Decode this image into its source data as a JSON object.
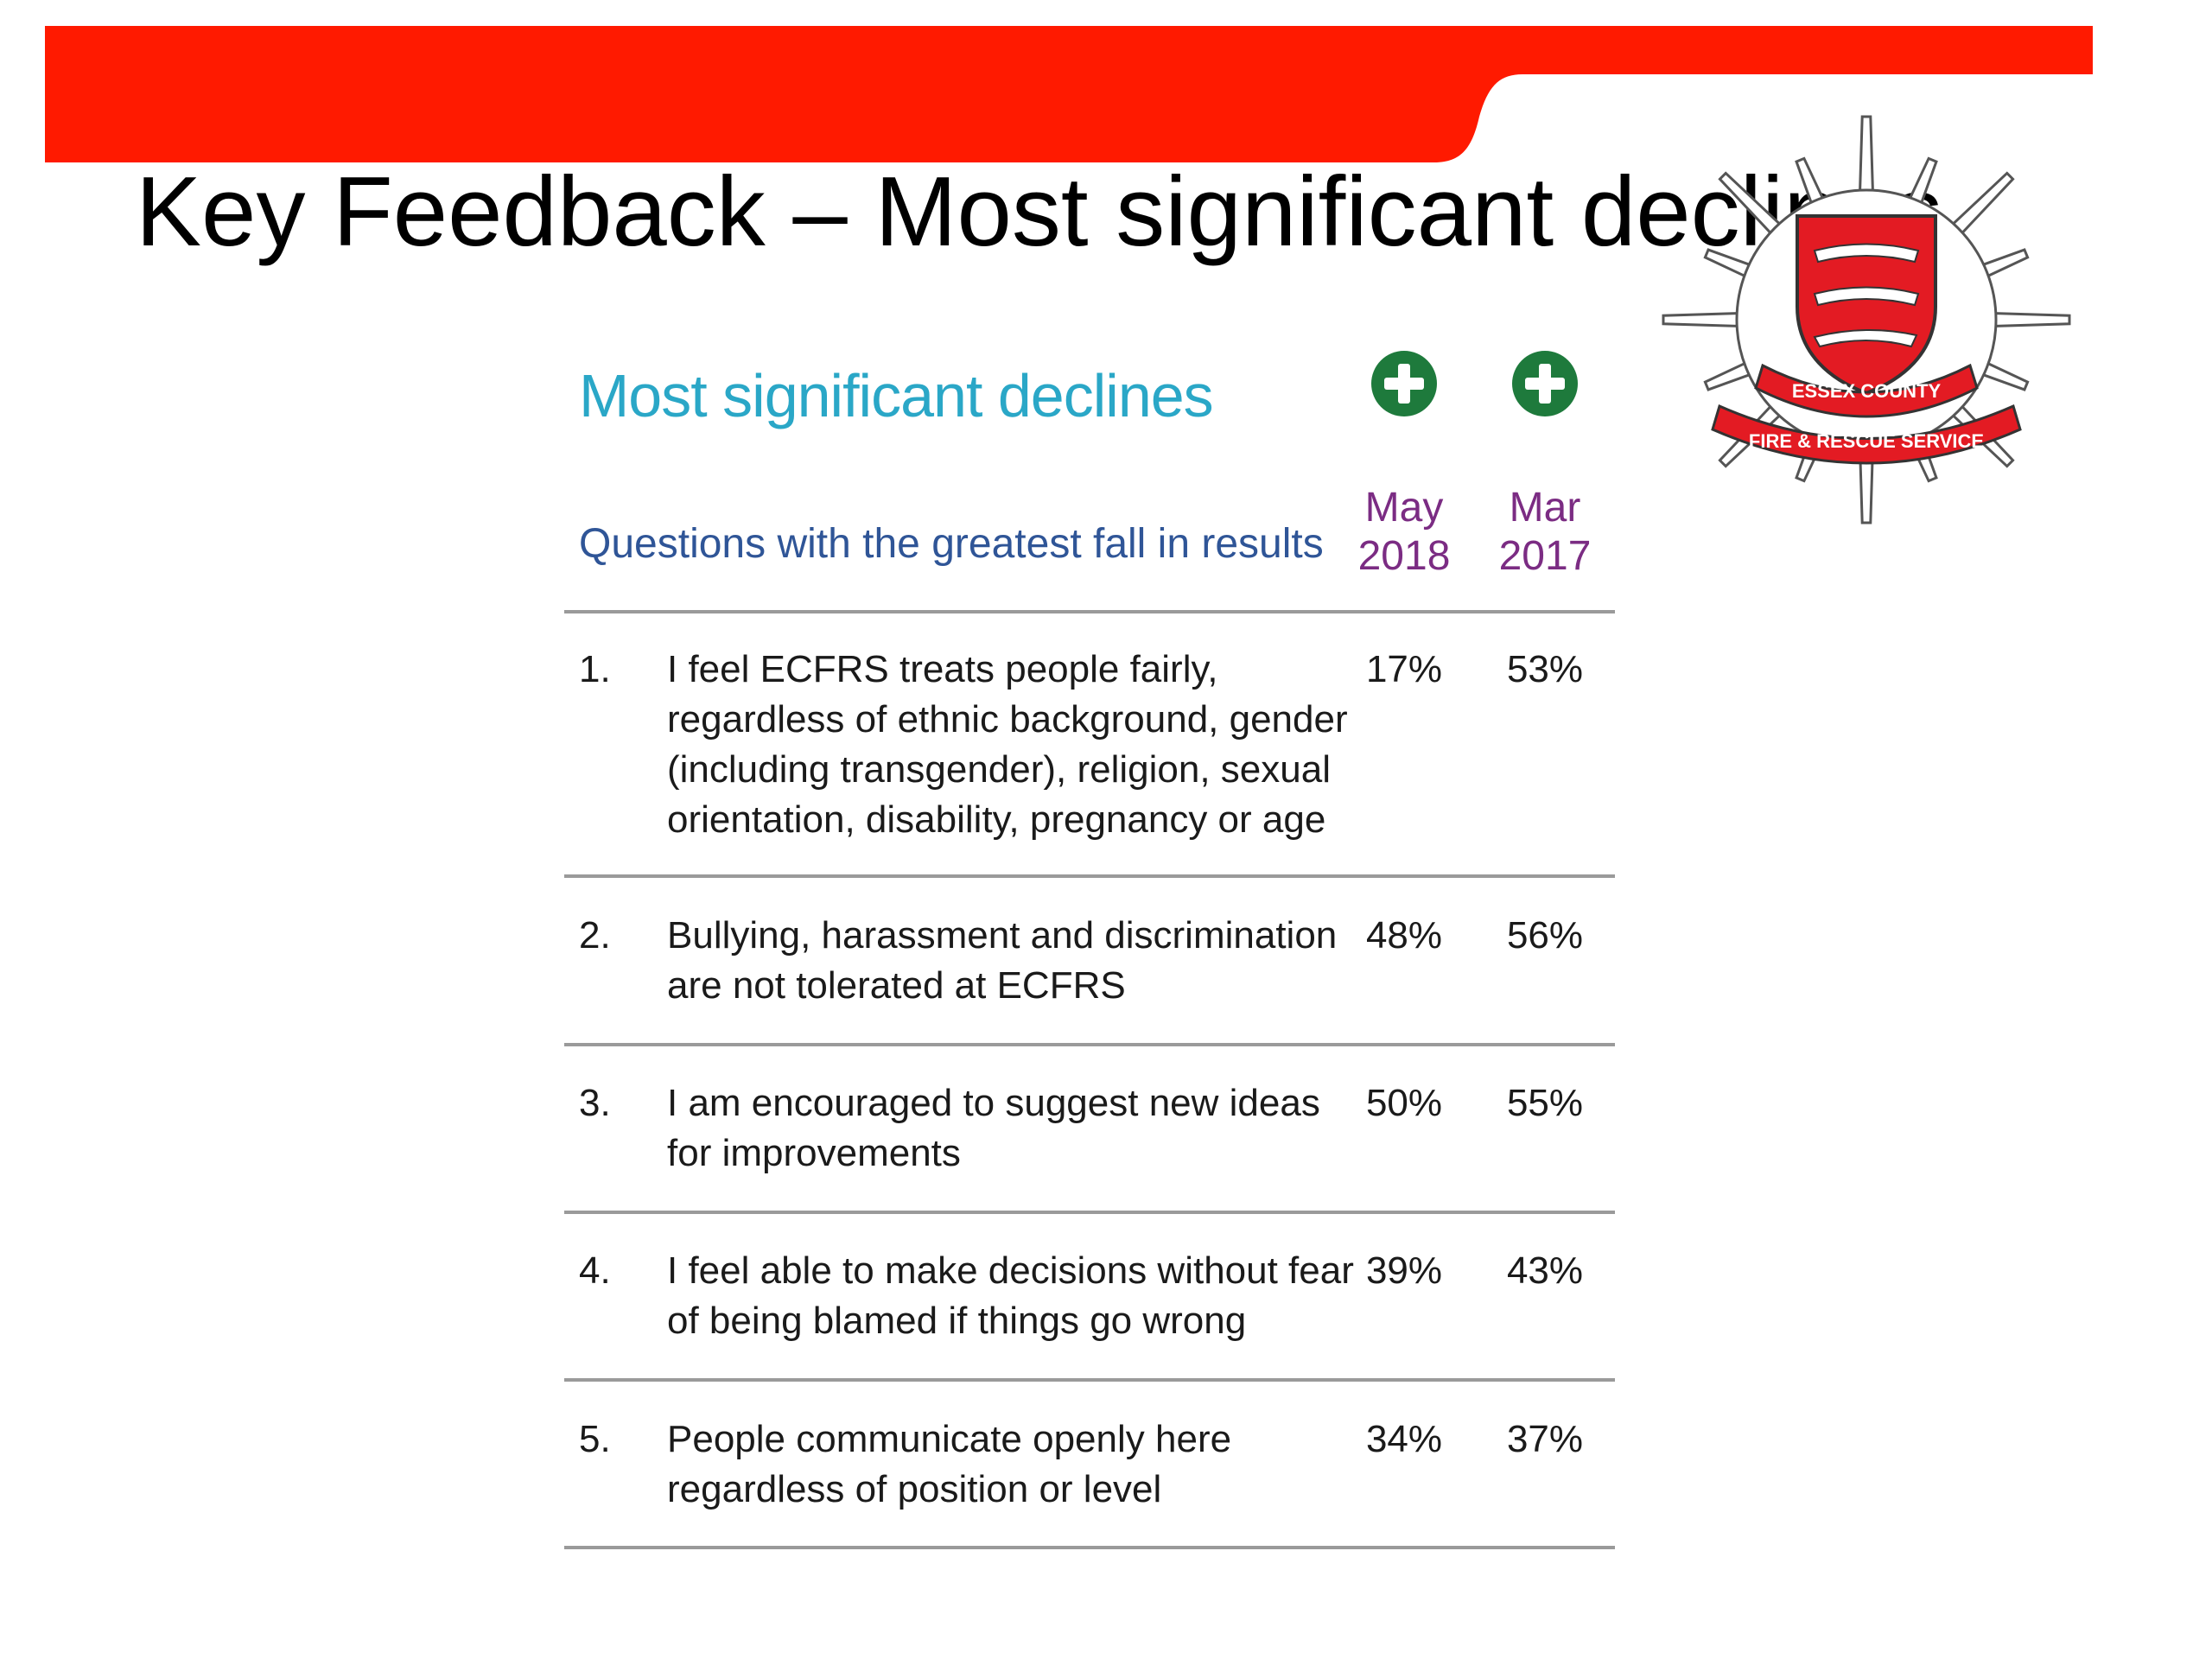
{
  "slide": {
    "title": "Key Feedback – Most significant declines",
    "banner_color": "#ff1a00"
  },
  "logo": {
    "name": "Essex County Fire & Rescue Service crest",
    "text_top": "ESSEX COUNTY",
    "text_bottom": "FIRE & RESCUE SERVICE",
    "shield_color": "#e31b23"
  },
  "table": {
    "heading": "Most significant declines",
    "subheading": "Questions with the greatest fall in results",
    "icons": [
      "plus-circle-icon",
      "plus-circle-icon"
    ],
    "columns": [
      {
        "line1": "May",
        "line2": "2018"
      },
      {
        "line1": "Mar",
        "line2": "2017"
      }
    ],
    "rows": [
      {
        "num": "1.",
        "lines": [
          "I feel ECFRS treats people fairly,",
          "regardless of ethnic background, gender",
          "(including transgender), religion, sexual",
          "orientation, disability, pregnancy or age"
        ],
        "may_2018": "17%",
        "mar_2017": "53%"
      },
      {
        "num": "2.",
        "lines": [
          "Bullying, harassment and discrimination",
          "are not tolerated at ECFRS"
        ],
        "may_2018": "48%",
        "mar_2017": "56%"
      },
      {
        "num": "3.",
        "lines": [
          "I am encouraged to suggest new ideas",
          "for improvements"
        ],
        "may_2018": "50%",
        "mar_2017": "55%"
      },
      {
        "num": "4.",
        "lines": [
          "I feel able to make decisions without fear",
          "of being blamed if things go wrong"
        ],
        "may_2018": "39%",
        "mar_2017": "43%"
      },
      {
        "num": "5.",
        "lines": [
          "People communicate openly here",
          "regardless of position or level"
        ],
        "may_2018": "34%",
        "mar_2017": "37%"
      }
    ]
  },
  "colors": {
    "heading": "#2aa7c7",
    "subheading": "#2f5597",
    "column_header": "#7b2c83",
    "icon_green": "#1e7a3c"
  }
}
